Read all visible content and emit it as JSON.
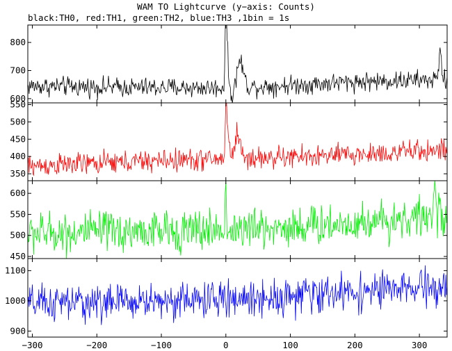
{
  "chart_data": {
    "type": "line",
    "title": "WAM TO Lightcurve (y−axis: Counts)",
    "subtitle": "black:TH0, red:TH1, green:TH2, blue:TH3 ,1bin = 1s",
    "xlabel": "",
    "xlim": [
      -307,
      343
    ],
    "xticks": [
      -300,
      -200,
      -100,
      0,
      100,
      200,
      300
    ],
    "x_step": 1,
    "grid": false,
    "panels": [
      {
        "series_name": "TH0",
        "color": "#000000",
        "ylim": [
          585,
          862
        ],
        "yticks": [
          600,
          700,
          800
        ],
        "baseline": [
          [
            -307,
            645
          ],
          [
            -150,
            640
          ],
          [
            0,
            638
          ],
          [
            100,
            648
          ],
          [
            200,
            660
          ],
          [
            343,
            668
          ]
        ],
        "noise": 17,
        "features": [
          {
            "x": 0,
            "value": 860,
            "width": 1.2
          },
          {
            "x": 2,
            "value": 760,
            "width": 2
          },
          {
            "x": 22,
            "value": 735,
            "width": 5
          },
          {
            "x": 10,
            "value": 610,
            "width": 4
          },
          {
            "x": 332,
            "value": 800,
            "width": 1.5
          }
        ]
      },
      {
        "series_name": "TH1",
        "color": "#ff0000",
        "ylim": [
          330,
          555
        ],
        "yticks": [
          350,
          400,
          450,
          500,
          550
        ],
        "baseline": [
          [
            -307,
            372
          ],
          [
            -200,
            380
          ],
          [
            -100,
            388
          ],
          [
            0,
            393
          ],
          [
            100,
            398
          ],
          [
            200,
            405
          ],
          [
            343,
            420
          ]
        ],
        "noise": 16,
        "features": [
          {
            "x": 0,
            "value": 555,
            "width": 1
          },
          {
            "x": 3,
            "value": 480,
            "width": 2
          },
          {
            "x": 18,
            "value": 470,
            "width": 4
          }
        ]
      },
      {
        "series_name": "TH2",
        "color": "#00ee00",
        "ylim": [
          445,
          630
        ],
        "yticks": [
          450,
          500,
          550,
          600
        ],
        "baseline": [
          [
            -307,
            505
          ],
          [
            -200,
            508
          ],
          [
            -100,
            510
          ],
          [
            0,
            513
          ],
          [
            100,
            520
          ],
          [
            200,
            530
          ],
          [
            343,
            548
          ]
        ],
        "noise": 24,
        "features": [
          {
            "x": 0,
            "value": 630,
            "width": 0.8
          },
          {
            "x": 325,
            "value": 625,
            "width": 1.5
          }
        ]
      },
      {
        "series_name": "TH3",
        "color": "#0000ff",
        "ylim": [
          880,
          1140
        ],
        "yticks": [
          900,
          1000,
          1100
        ],
        "baseline": [
          [
            -307,
            990
          ],
          [
            -200,
            995
          ],
          [
            -100,
            1000
          ],
          [
            0,
            1005
          ],
          [
            100,
            1015
          ],
          [
            200,
            1030
          ],
          [
            343,
            1045
          ]
        ],
        "noise": 30,
        "features": []
      }
    ]
  }
}
